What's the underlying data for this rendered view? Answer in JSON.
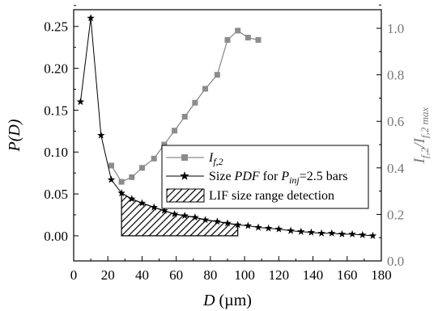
{
  "chart_data": {
    "type": "line",
    "xlabel": {
      "italic": "D",
      "unit": " (µm)"
    },
    "ylabel_left": "P(D)",
    "ylabel_right": {
      "base": "I",
      "sub1": "f,2",
      "slash": "/I",
      "sub2": "f,2 max"
    },
    "x_ticks": [
      "0",
      "20",
      "40",
      "60",
      "80",
      "100",
      "120",
      "140",
      "160",
      "180"
    ],
    "y_left_ticks": [
      "0.00",
      "0.05",
      "0.10",
      "0.15",
      "0.20",
      "0.25"
    ],
    "y_right_ticks": [
      "0.0",
      "0.2",
      "0.4",
      "0.6",
      "0.8",
      "1.0"
    ],
    "xlim": [
      0,
      180
    ],
    "ylim_left": [
      -0.03,
      0.27
    ],
    "ylim_right": [
      0.0,
      1.08
    ],
    "series": [
      {
        "name": {
          "base": "I",
          "sub": "f,2"
        },
        "axis": "right",
        "marker": "square",
        "color": "#8c8c8c",
        "x": [
          22,
          28,
          34,
          40,
          47,
          53,
          59,
          65,
          71,
          77,
          84,
          90,
          96,
          102,
          108
        ],
        "y": [
          0.41,
          0.34,
          0.36,
          0.4,
          0.44,
          0.5,
          0.56,
          0.62,
          0.68,
          0.74,
          0.8,
          0.95,
          0.99,
          0.96,
          0.95
        ]
      },
      {
        "name": {
          "prefix": "Size ",
          "pdf": "PDF",
          "mid": " for ",
          "p": "P",
          "sub": "inj",
          "suffix": "=2.5 bars"
        },
        "axis": "left",
        "marker": "star",
        "color": "#000000",
        "x": [
          4,
          10,
          16,
          22,
          28,
          34,
          40,
          47,
          53,
          59,
          65,
          71,
          77,
          84,
          90,
          96,
          102,
          108,
          114,
          120,
          127,
          133,
          139,
          145,
          151,
          157,
          163,
          169,
          175
        ],
        "y": [
          0.16,
          0.26,
          0.12,
          0.067,
          0.051,
          0.044,
          0.039,
          0.034,
          0.03,
          0.026,
          0.024,
          0.022,
          0.019,
          0.017,
          0.015,
          0.013,
          0.012,
          0.01,
          0.009,
          0.008,
          0.006,
          0.005,
          0.004,
          0.003,
          0.003,
          0.002,
          0.002,
          0.001,
          0.0
        ]
      }
    ],
    "shaded_region": {
      "label": "LIF size range detection",
      "x_start": 28,
      "x_end": 96,
      "pattern": "diagonal-hatch"
    },
    "legend": {
      "placement": "center-right"
    },
    "grid": false
  }
}
